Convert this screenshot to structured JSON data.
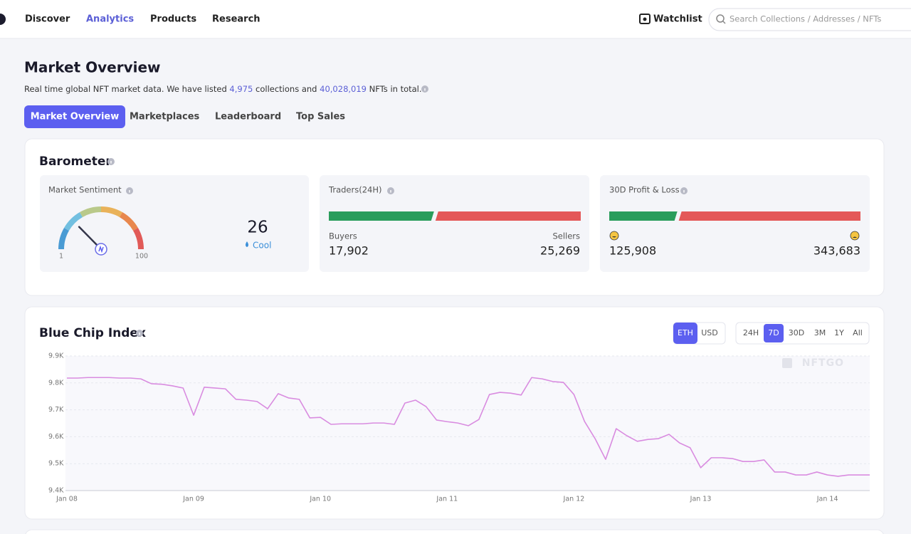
{
  "nav": {
    "items": [
      "Discover",
      "Analytics",
      "Products",
      "Research"
    ],
    "active": 1,
    "watchlist": "Watchlist",
    "search": "Search Collections / Addresses / NFTs"
  },
  "header": {
    "title": "Market Overview",
    "subtitle": {
      "before": "Real time global NFT market data. We have listed ",
      "collections": "4,975",
      "middle": " collections and ",
      "nfts": "40,028,019",
      "after": " NFTs in total."
    }
  },
  "tabs": {
    "items": [
      "Market Overview",
      "Marketplaces",
      "Leaderboard",
      "Top Sales"
    ],
    "active": 0
  },
  "barometer": {
    "title": "Barometer",
    "sentiment": {
      "label": "Market Sentiment",
      "value": "26",
      "mood": "Cool",
      "min": "1",
      "max": "100"
    },
    "traders": {
      "label": "Traders(24H)",
      "buyers_label": "Buyers",
      "buyers": "17,902",
      "sellers_label": "Sellers",
      "sellers": "25,269"
    },
    "profit_loss": {
      "label": "30D Profit & Loss",
      "profit": "125,908",
      "loss": "343,683"
    }
  },
  "chart_data": {
    "type": "line",
    "title": "Blue Chip Index",
    "currency": {
      "options": [
        "ETH",
        "USD"
      ],
      "active": 0
    },
    "ranges": {
      "options": [
        "24H",
        "7D",
        "30D",
        "3M",
        "1Y",
        "All"
      ],
      "active": 1
    },
    "watermark": "NFTGO",
    "categories": [
      "Jan 08",
      null,
      null,
      null,
      null,
      null,
      null,
      null,
      null,
      null,
      null,
      null,
      "Jan 09",
      null,
      null,
      null,
      null,
      null,
      null,
      null,
      null,
      null,
      null,
      null,
      "Jan 10",
      null,
      null,
      null,
      null,
      null,
      null,
      null,
      null,
      null,
      null,
      null,
      "Jan 11",
      null,
      null,
      null,
      null,
      null,
      null,
      null,
      null,
      null,
      null,
      null,
      "Jan 12",
      null,
      null,
      null,
      null,
      null,
      null,
      null,
      null,
      null,
      null,
      null,
      "Jan 13",
      null,
      null,
      null,
      null,
      null,
      null,
      null,
      null,
      null,
      null,
      null,
      "Jan 14",
      null,
      null,
      null,
      null
    ],
    "series": [
      {
        "color": "#d98ce0",
        "values": [
          9818,
          9818,
          9820,
          9820,
          9820,
          9818,
          9818,
          9815,
          9797,
          9795,
          9789,
          9781,
          9680,
          9784,
          9781,
          9778,
          9739,
          9736,
          9731,
          9704,
          9760,
          9744,
          9739,
          9670,
          9672,
          9646,
          9648,
          9648,
          9648,
          9651,
          9651,
          9646,
          9725,
          9736,
          9712,
          9662,
          9656,
          9651,
          9641,
          9664,
          9757,
          9765,
          9762,
          9755,
          9820,
          9815,
          9805,
          9802,
          9757,
          9657,
          9593,
          9516,
          9630,
          9604,
          9583,
          9590,
          9593,
          9609,
          9577,
          9559,
          9485,
          9522,
          9522,
          9519,
          9508,
          9508,
          9514,
          9469,
          9469,
          9458,
          9458,
          9469,
          9458,
          9453,
          9458,
          9458,
          9458
        ]
      }
    ],
    "ylim": [
      9400,
      9900
    ],
    "yticks": [
      {
        "value": 9400,
        "label": "9.4K"
      },
      {
        "value": 9500,
        "label": "9.5K"
      },
      {
        "value": 9600,
        "label": "9.6K"
      },
      {
        "value": 9700,
        "label": "9.7K"
      },
      {
        "value": 9800,
        "label": "9.8K"
      },
      {
        "value": 9900,
        "label": "9.9K"
      }
    ],
    "grid": true
  }
}
